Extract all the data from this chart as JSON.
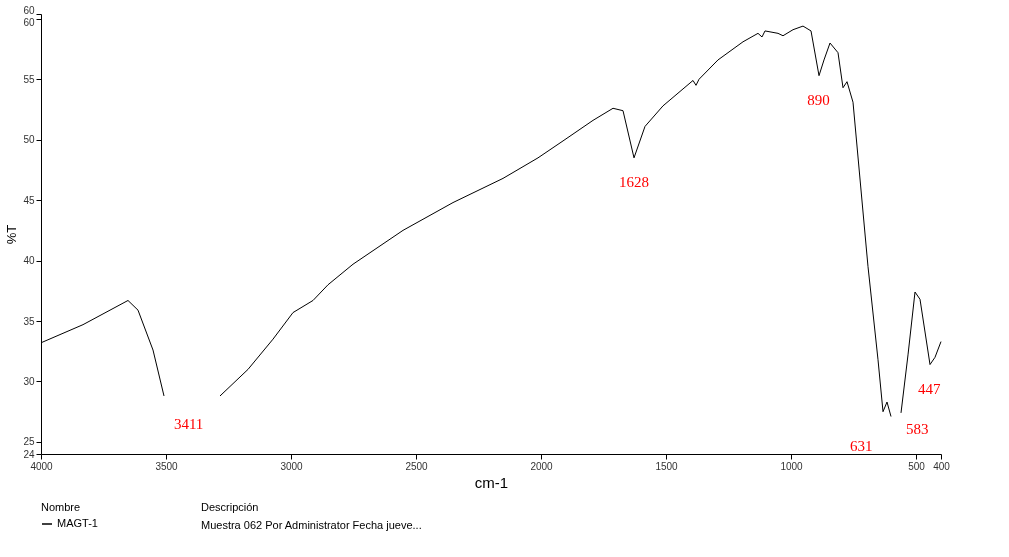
{
  "chart_data": {
    "type": "line",
    "xlabel": "cm-1",
    "ylabel": "%T",
    "x": [
      4000,
      3832,
      3652,
      3612,
      3552,
      3508,
      3400,
      3284,
      3172,
      3072,
      2992,
      2912,
      2852,
      2752,
      2552,
      2352,
      2152,
      2012,
      1912,
      1792,
      1712,
      1672,
      1628,
      1584,
      1512,
      1392,
      1380,
      1368,
      1292,
      1192,
      1132,
      1116,
      1104,
      1052,
      1032,
      992,
      952,
      920,
      888,
      868,
      844,
      812,
      792,
      776,
      752,
      692,
      652,
      632,
      616,
      600,
      580,
      560,
      532,
      504,
      484,
      444,
      424,
      400
    ],
    "series": [
      {
        "name": "MAGT-1",
        "color": "#000000",
        "values": [
          33.2,
          34.7,
          36.7,
          35.9,
          32.6,
          28.8,
          null,
          28.8,
          31.0,
          33.5,
          35.7,
          36.7,
          38.0,
          39.7,
          42.5,
          44.8,
          46.8,
          48.5,
          49.9,
          51.6,
          52.6,
          52.4,
          48.5,
          51.1,
          52.8,
          54.9,
          54.5,
          55.0,
          56.6,
          58.1,
          58.8,
          58.5,
          59.0,
          58.8,
          58.6,
          59.1,
          59.4,
          59.0,
          55.3,
          56.6,
          58.0,
          57.2,
          54.3,
          54.8,
          53.1,
          39.5,
          31.8,
          27.5,
          28.3,
          27.1,
          null,
          27.4,
          32.2,
          37.4,
          36.8,
          31.4,
          32.0,
          33.3
        ]
      }
    ],
    "xlim": [
      4000,
      400
    ],
    "xticks": [
      4000,
      3500,
      3000,
      2500,
      2000,
      1500,
      1000,
      500,
      400
    ],
    "ylim": [
      24,
      60.4
    ],
    "yticks": [
      24,
      25,
      30,
      35,
      40,
      45,
      50,
      55,
      60,
      {
        "value": 60.4,
        "label": "60"
      }
    ],
    "grid": false,
    "legend": "bottom",
    "legend_title": "Nombre",
    "annotations": [
      "3411",
      {
        "text": "1628",
        "x": 1628,
        "y": 48.5
      },
      {
        "text": "890",
        "x": 890,
        "y": 55.3
      },
      {
        "text": "631",
        "x": 631,
        "y": 27.5
      },
      {
        "text": "583",
        "x": 583,
        "y": 27.2
      },
      {
        "text": "447",
        "x": 447,
        "y": 31.4
      },
      "Descripción",
      "Muestra 062 Por Administrator Fecha jueve..."
    ]
  }
}
